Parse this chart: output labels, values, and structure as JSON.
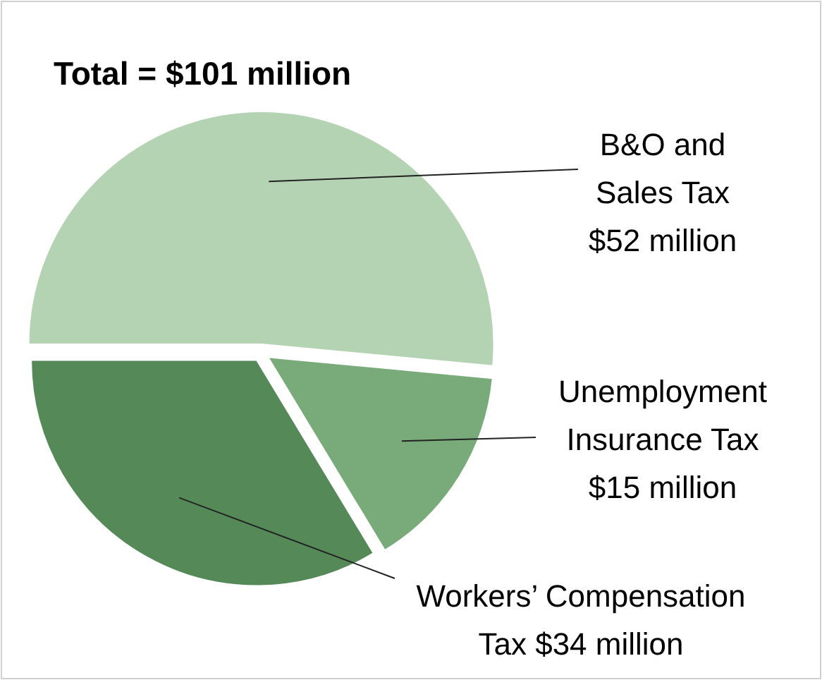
{
  "chart_data": {
    "type": "pie",
    "title": "Total = $101 million",
    "categories": [
      "B&O and Sales Tax",
      "Unemployment Insurance Tax",
      "Workers’ Compensation Tax"
    ],
    "values": [
      52,
      15,
      34
    ],
    "value_labels": [
      "$52 million",
      "$15 million",
      "$34 million"
    ],
    "colors": [
      "#b3d3b3",
      "#79aa79",
      "#558a58"
    ]
  }
}
